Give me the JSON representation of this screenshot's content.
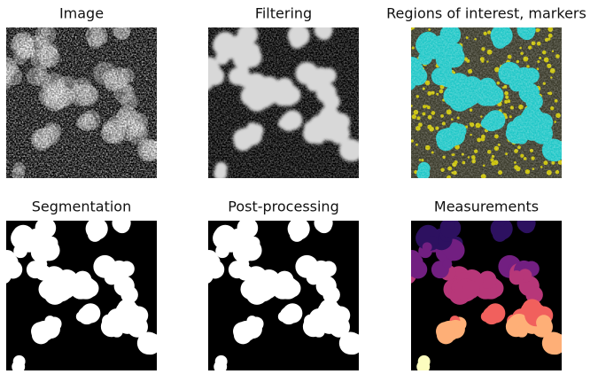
{
  "panels": [
    {
      "title": "Image"
    },
    {
      "title": "Filtering"
    },
    {
      "title": "Regions of interest, markers"
    },
    {
      "title": "Segmentation"
    },
    {
      "title": "Post-processing"
    },
    {
      "title": "Measurements"
    }
  ]
}
